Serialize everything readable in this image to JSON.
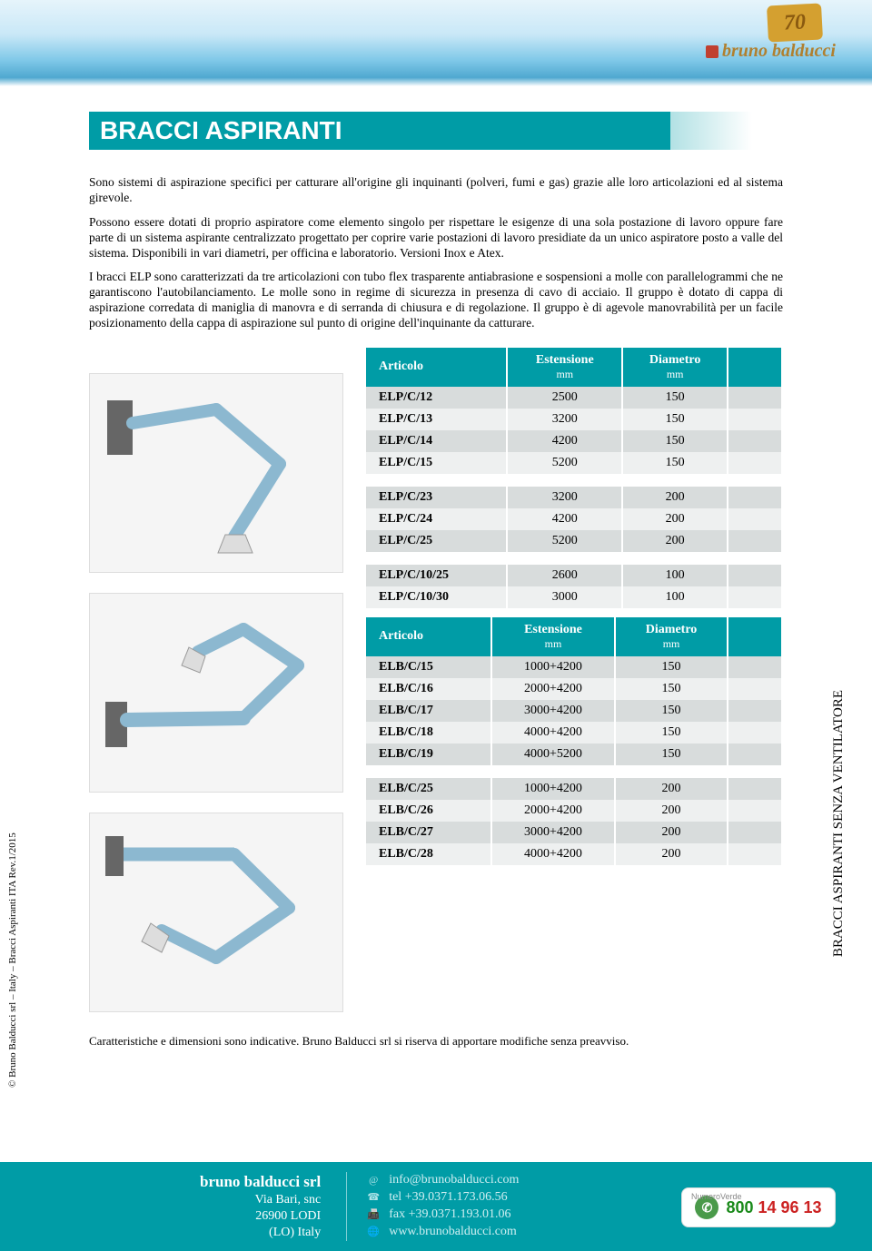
{
  "header": {
    "brand": "bruno balducci",
    "anniversary": "70"
  },
  "title": "BRACCI ASPIRANTI",
  "paragraphs": {
    "p1": "Sono sistemi di aspirazione specifici per catturare all'origine gli inquinanti (polveri, fumi e gas) grazie alle loro articolazioni ed al sistema girevole.",
    "p2": "Possono essere dotati di proprio aspiratore come elemento singolo per rispettare le esigenze di una sola postazione di lavoro oppure fare parte di un sistema aspirante centralizzato progettato per coprire varie postazioni di lavoro presidiate da un unico aspiratore posto a valle del sistema. Disponibili in vari diametri, per officina e laboratorio. Versioni Inox e Atex.",
    "p3": "I bracci ELP sono caratterizzati da tre articolazioni con tubo flex trasparente antiabrasione e sospensioni a molle con parallelogrammi che ne garantiscono l'autobilanciamento. Le molle sono in regime di sicurezza in presenza di cavo di acciaio. Il gruppo è dotato di cappa di aspirazione corredata di maniglia di manovra e di serranda di chiusura e di regolazione. Il gruppo è di agevole manovrabilità per un facile posizionamento della cappa di aspirazione sul punto di origine dell'inquinante da catturare."
  },
  "table1": {
    "headers": {
      "c1": "Articolo",
      "c2": "Estensione",
      "c2sub": "mm",
      "c3": "Diametro",
      "c3sub": "mm"
    },
    "g1": [
      {
        "a": "ELP/C/12",
        "e": "2500",
        "d": "150"
      },
      {
        "a": "ELP/C/13",
        "e": "3200",
        "d": "150"
      },
      {
        "a": "ELP/C/14",
        "e": "4200",
        "d": "150"
      },
      {
        "a": "ELP/C/15",
        "e": "5200",
        "d": "150"
      }
    ],
    "g2": [
      {
        "a": "ELP/C/23",
        "e": "3200",
        "d": "200"
      },
      {
        "a": "ELP/C/24",
        "e": "4200",
        "d": "200"
      },
      {
        "a": "ELP/C/25",
        "e": "5200",
        "d": "200"
      }
    ],
    "g3": [
      {
        "a": "ELP/C/10/25",
        "e": "2600",
        "d": "100"
      },
      {
        "a": "ELP/C/10/30",
        "e": "3000",
        "d": "100"
      }
    ]
  },
  "table2": {
    "headers": {
      "c1": "Articolo",
      "c2": "Estensione",
      "c2sub": "mm",
      "c3": "Diametro",
      "c3sub": "mm"
    },
    "g1": [
      {
        "a": "ELB/C/15",
        "e": "1000+4200",
        "d": "150"
      },
      {
        "a": "ELB/C/16",
        "e": "2000+4200",
        "d": "150"
      },
      {
        "a": "ELB/C/17",
        "e": "3000+4200",
        "d": "150"
      },
      {
        "a": "ELB/C/18",
        "e": "4000+4200",
        "d": "150"
      },
      {
        "a": "ELB/C/19",
        "e": "4000+5200",
        "d": "150"
      }
    ],
    "g2": [
      {
        "a": "ELB/C/25",
        "e": "1000+4200",
        "d": "200"
      },
      {
        "a": "ELB/C/26",
        "e": "2000+4200",
        "d": "200"
      },
      {
        "a": "ELB/C/27",
        "e": "3000+4200",
        "d": "200"
      },
      {
        "a": "ELB/C/28",
        "e": "4000+4200",
        "d": "200"
      }
    ]
  },
  "side_left": "© Bruno Balducci srl – Italy – Bracci Aspiranti ITA Rev.1/2015",
  "side_right": "BRACCI ASPIRANTI SENZA VENTILATORE",
  "disclaimer": "Caratteristiche e dimensioni sono indicative. Bruno Balducci srl si riserva di apportare modifiche senza preavviso.",
  "footer": {
    "company": "bruno balducci srl",
    "addr1": "Via Bari, snc",
    "addr2": "26900 LODI",
    "addr3": "(LO) Italy",
    "email": "info@brunobalducci.com",
    "tel": "tel +39.0371.173.06.56",
    "fax": "fax +39.0371.193.01.06",
    "web": "www.brunobalducci.com",
    "green_label": "NumeroVerde",
    "green_number": "800 14 96 13"
  },
  "colors": {
    "primary": "#009ca6",
    "row_a": "#d8dcdc",
    "row_b": "#eef0f0"
  }
}
